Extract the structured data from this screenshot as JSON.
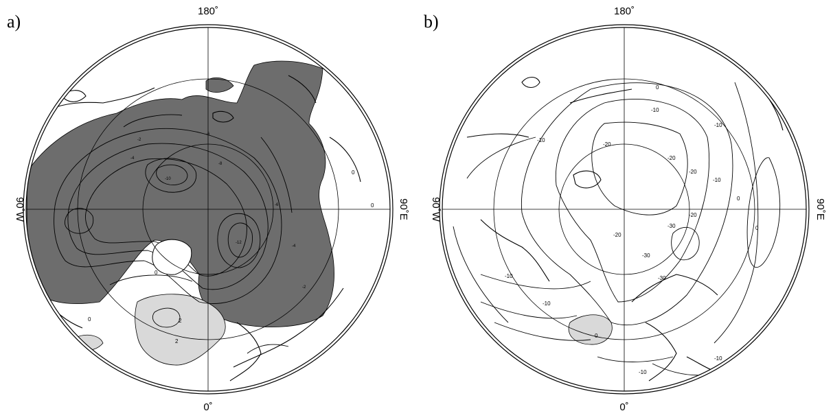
{
  "panels": [
    {
      "id": "a",
      "label": "a)",
      "top_label": "180˚",
      "bottom_label": "0˚",
      "left_label": "90˚W",
      "right_label": "90˚E",
      "contour_labels": [
        "0",
        "0",
        "0",
        "0",
        "2",
        "2",
        "-2",
        "-4",
        "-6",
        "-8",
        "-10",
        "-12",
        "-6",
        "-4",
        "-2"
      ]
    },
    {
      "id": "b",
      "label": "b)",
      "top_label": "180˚",
      "bottom_label": "0˚",
      "left_label": "90˚W",
      "right_label": "90˚E",
      "contour_labels": [
        "-10",
        "-10",
        "-10",
        "-20",
        "-20",
        "-20",
        "-20",
        "-30",
        "-30",
        "-10",
        "-10",
        "-10",
        "0",
        "0",
        "0",
        "0",
        "-10",
        "-10",
        "-20",
        "-30"
      ]
    }
  ],
  "colors": {
    "dark_shade": "#6d6d6d",
    "light_shade": "#d9d9d9",
    "line": "#000000",
    "background": "#ffffff"
  }
}
